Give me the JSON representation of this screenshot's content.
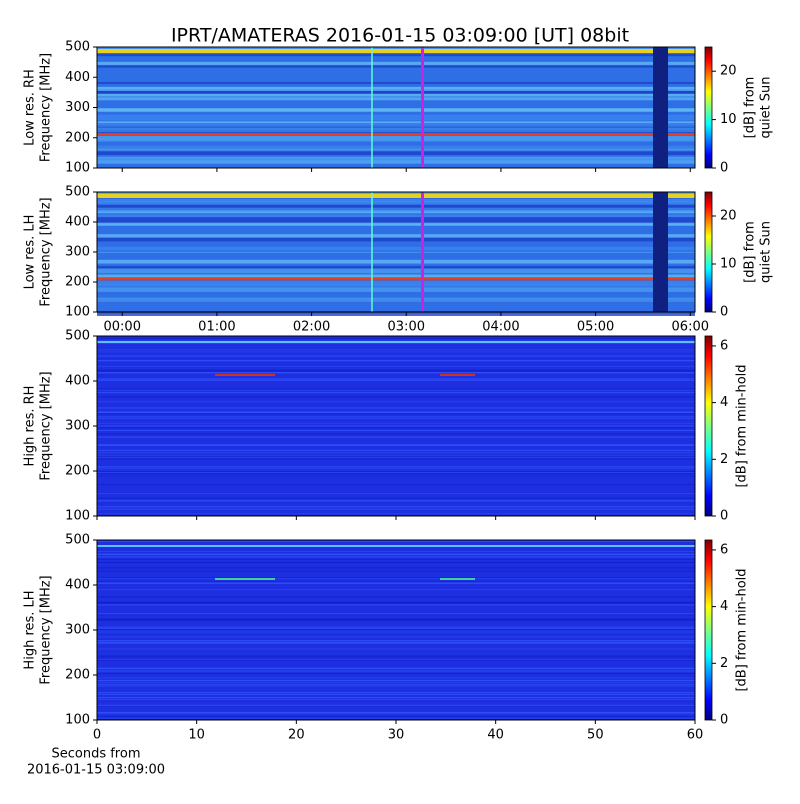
{
  "title": "IPRT/AMATERAS 2016-01-15 03:09:00 [UT]   08bit",
  "chart_data": [
    {
      "type": "spectrogram",
      "ylabel": [
        "Low res. RH",
        "Frequency [MHz]"
      ],
      "ylim": [
        100,
        500
      ],
      "yticks": [
        100,
        200,
        300,
        400,
        500
      ],
      "colorbar": {
        "label": [
          "[dB] from",
          "quiet Sun"
        ],
        "lim": [
          0,
          25
        ],
        "ticks": [
          0,
          10,
          20
        ],
        "colormap": "jet"
      }
    },
    {
      "type": "spectrogram",
      "ylabel": [
        "Low res. LH",
        "Frequency [MHz]"
      ],
      "ylim": [
        100,
        500
      ],
      "yticks": [
        100,
        200,
        300,
        400,
        500
      ],
      "xlim": [
        -16,
        363
      ],
      "xticks": [
        {
          "value": 0,
          "label": "00:00"
        },
        {
          "value": 60,
          "label": "01:00"
        },
        {
          "value": 120,
          "label": "02:00"
        },
        {
          "value": 180,
          "label": "03:00"
        },
        {
          "value": 240,
          "label": "04:00"
        },
        {
          "value": 300,
          "label": "05:00"
        },
        {
          "value": 360,
          "label": "06:00"
        }
      ],
      "colorbar": {
        "label": [
          "[dB] from",
          "quiet Sun"
        ],
        "lim": [
          0,
          25
        ],
        "ticks": [
          0,
          10,
          20
        ],
        "colormap": "jet"
      }
    },
    {
      "type": "spectrogram",
      "ylabel": [
        "High res. RH",
        "Frequency [MHz]"
      ],
      "ylim": [
        100,
        500
      ],
      "yticks": [
        100,
        200,
        300,
        400,
        500
      ],
      "colorbar": {
        "label": [
          "[dB] from min-hold"
        ],
        "lim": [
          0,
          6.35
        ],
        "ticks": [
          0,
          2,
          4,
          6
        ],
        "colormap": "jet"
      }
    },
    {
      "type": "spectrogram",
      "ylabel": [
        "High res. LH",
        "Frequency [MHz]"
      ],
      "ylim": [
        100,
        500
      ],
      "yticks": [
        100,
        200,
        300,
        400,
        500
      ],
      "xlim": [
        0,
        60
      ],
      "xticks": [
        0,
        10,
        20,
        30,
        40,
        50,
        60
      ],
      "xlabel": [
        "Seconds from",
        "2016-01-15 03:09:00"
      ],
      "colorbar": {
        "label": [
          "[dB] from min-hold"
        ],
        "lim": [
          0,
          6.35
        ],
        "ticks": [
          0,
          2,
          4,
          6
        ],
        "colormap": "jet"
      }
    }
  ]
}
